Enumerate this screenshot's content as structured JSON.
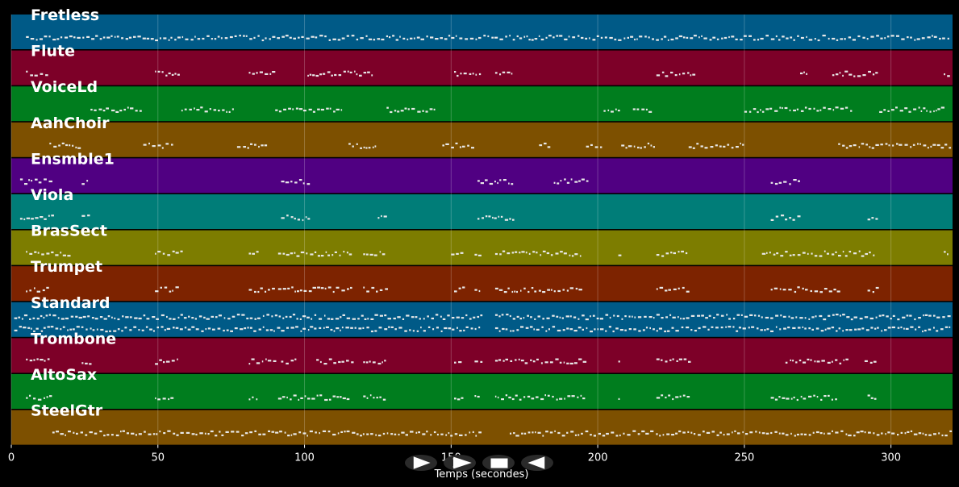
{
  "chart_data": {
    "type": "piano-roll",
    "xlabel": "Temps (secondes)",
    "xlim": [
      0,
      321
    ],
    "xticks": [
      0,
      50,
      100,
      150,
      200,
      250,
      300
    ],
    "grid": true,
    "tracks": [
      {
        "name": "Fretless",
        "color": "#005a87",
        "ranges": [
          [
            5,
            320
          ]
        ],
        "lanes": 1
      },
      {
        "name": "Flute",
        "color": "#7d0028",
        "ranges": [
          [
            5,
            13
          ],
          [
            49,
            57
          ],
          [
            81,
            90
          ],
          [
            101,
            123
          ],
          [
            151,
            160
          ],
          [
            165,
            171
          ],
          [
            220,
            233
          ],
          [
            269,
            271
          ],
          [
            280,
            295
          ],
          [
            318,
            320
          ]
        ],
        "lanes": 1
      },
      {
        "name": "VoiceLd",
        "color": "#007d1e",
        "ranges": [
          [
            27,
            44
          ],
          [
            58,
            76
          ],
          [
            90,
            113
          ],
          [
            128,
            145
          ],
          [
            202,
            208
          ],
          [
            212,
            218
          ],
          [
            250,
            287
          ],
          [
            296,
            318
          ]
        ],
        "lanes": 1
      },
      {
        "name": "AahChoir",
        "color": "#7d5000",
        "ranges": [
          [
            13,
            23
          ],
          [
            45,
            55
          ],
          [
            77,
            87
          ],
          [
            115,
            125
          ],
          [
            147,
            157
          ],
          [
            180,
            184
          ],
          [
            196,
            201
          ],
          [
            208,
            219
          ],
          [
            231,
            250
          ],
          [
            282,
            320
          ]
        ],
        "lanes": 1
      },
      {
        "name": "Ensmble1",
        "color": "#500082",
        "ranges": [
          [
            3,
            14
          ],
          [
            24,
            26
          ],
          [
            92,
            102
          ],
          [
            159,
            171
          ],
          [
            185,
            197
          ],
          [
            259,
            269
          ]
        ],
        "lanes": 1
      },
      {
        "name": "Viola",
        "color": "#007d78",
        "ranges": [
          [
            3,
            14
          ],
          [
            24,
            26
          ],
          [
            92,
            102
          ],
          [
            125,
            128
          ],
          [
            159,
            171
          ],
          [
            259,
            269
          ],
          [
            292,
            295
          ]
        ],
        "lanes": 1
      },
      {
        "name": "BrasSect",
        "color": "#7d7d00",
        "ranges": [
          [
            5,
            20
          ],
          [
            49,
            58
          ],
          [
            81,
            84
          ],
          [
            91,
            116
          ],
          [
            120,
            128
          ],
          [
            150,
            154
          ],
          [
            158,
            160
          ],
          [
            165,
            195
          ],
          [
            207,
            208
          ],
          [
            220,
            231
          ],
          [
            256,
            295
          ],
          [
            318,
            320
          ]
        ],
        "lanes": 1
      },
      {
        "name": "Trumpet",
        "color": "#7d2300",
        "ranges": [
          [
            5,
            13
          ],
          [
            49,
            57
          ],
          [
            81,
            90
          ],
          [
            91,
            116
          ],
          [
            120,
            128
          ],
          [
            151,
            154
          ],
          [
            158,
            160
          ],
          [
            165,
            195
          ],
          [
            220,
            231
          ],
          [
            259,
            282
          ],
          [
            292,
            295
          ]
        ],
        "lanes": 1
      },
      {
        "name": "Standard",
        "color": "#005a87",
        "ranges": [
          [
            1,
            160
          ],
          [
            165,
            320
          ]
        ],
        "lanes": 2
      },
      {
        "name": "Trombone",
        "color": "#7d0028",
        "ranges": [
          [
            5,
            13
          ],
          [
            24,
            27
          ],
          [
            49,
            57
          ],
          [
            81,
            90
          ],
          [
            92,
            97
          ],
          [
            104,
            116
          ],
          [
            120,
            128
          ],
          [
            151,
            154
          ],
          [
            158,
            160
          ],
          [
            165,
            195
          ],
          [
            207,
            208
          ],
          [
            220,
            231
          ],
          [
            264,
            285
          ],
          [
            291,
            295
          ]
        ],
        "lanes": 1
      },
      {
        "name": "AltoSax",
        "color": "#007d1e",
        "ranges": [
          [
            5,
            13
          ],
          [
            49,
            55
          ],
          [
            81,
            84
          ],
          [
            91,
            116
          ],
          [
            120,
            128
          ],
          [
            151,
            154
          ],
          [
            158,
            160
          ],
          [
            165,
            195
          ],
          [
            207,
            208
          ],
          [
            220,
            231
          ],
          [
            259,
            282
          ],
          [
            292,
            295
          ]
        ],
        "lanes": 1
      },
      {
        "name": "SteelGtr",
        "color": "#7d5000",
        "ranges": [
          [
            14,
            160
          ],
          [
            170,
            320
          ]
        ],
        "lanes": 1
      }
    ]
  },
  "controls": {
    "play_glyph": "▷",
    "fast_forward_glyph": ">",
    "stop_glyph": "■",
    "rewind_glyph": "◁"
  }
}
